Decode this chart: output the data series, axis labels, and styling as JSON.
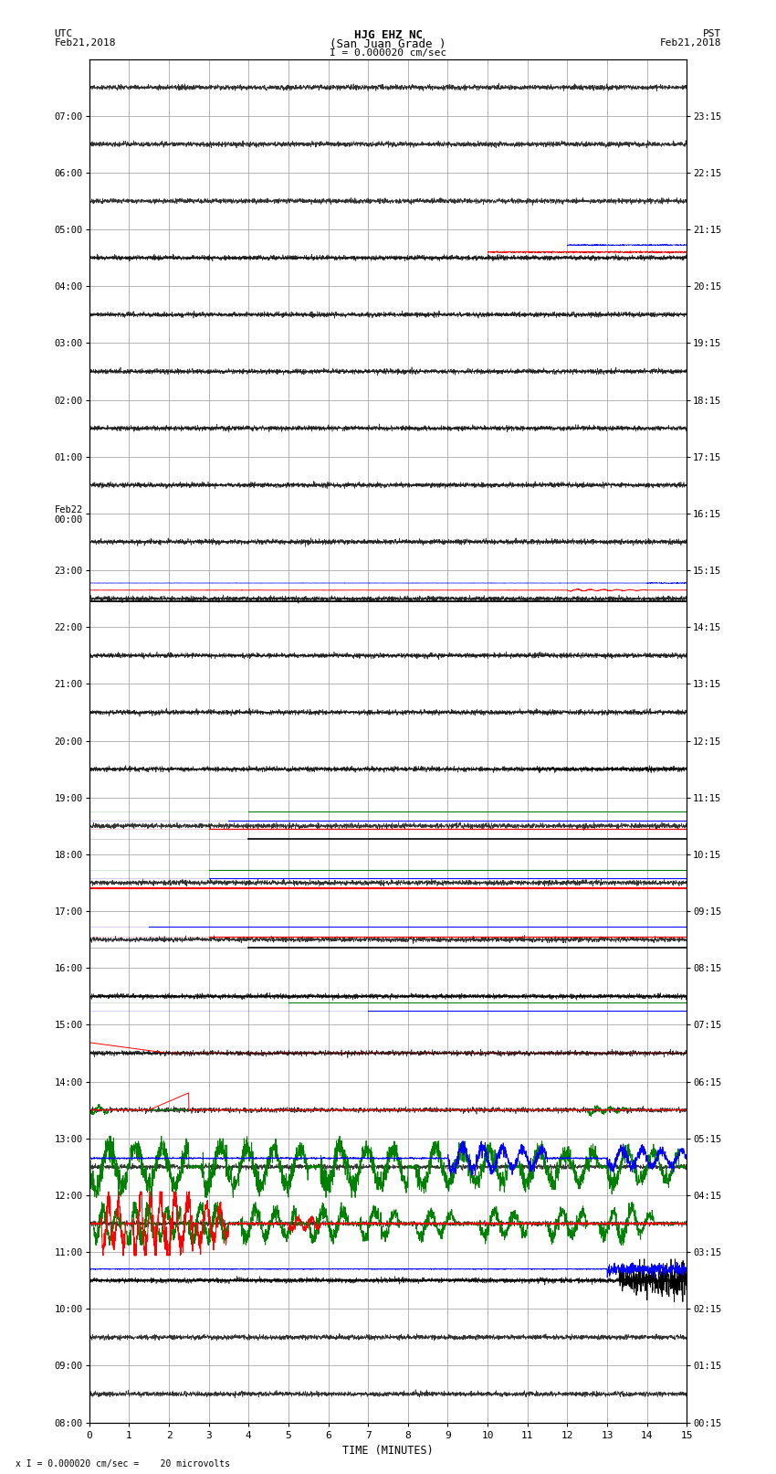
{
  "title_line1": "HJG EHZ NC",
  "title_line2": "(San Juan Grade )",
  "title_line3": "I = 0.000020 cm/sec",
  "label_left_top1": "UTC",
  "label_left_top2": "Feb21,2018",
  "label_right_top1": "PST",
  "label_right_top2": "Feb21,2018",
  "xlabel": "TIME (MINUTES)",
  "bottom_note": "x I = 0.000020 cm/sec =    20 microvolts",
  "utc_labels": [
    "08:00",
    "09:00",
    "10:00",
    "11:00",
    "12:00",
    "13:00",
    "14:00",
    "15:00",
    "16:00",
    "17:00",
    "18:00",
    "19:00",
    "20:00",
    "21:00",
    "22:00",
    "23:00",
    "Feb22\n00:00",
    "01:00",
    "02:00",
    "03:00",
    "04:00",
    "05:00",
    "06:00",
    "07:00"
  ],
  "pst_labels": [
    "00:15",
    "01:15",
    "02:15",
    "03:15",
    "04:15",
    "05:15",
    "06:15",
    "07:15",
    "08:15",
    "09:15",
    "10:15",
    "11:15",
    "12:15",
    "13:15",
    "14:15",
    "15:15",
    "16:15",
    "17:15",
    "18:15",
    "19:15",
    "20:15",
    "21:15",
    "22:15",
    "23:15"
  ],
  "num_rows": 24,
  "x_min": 0,
  "x_max": 15,
  "background_color": "#ffffff",
  "grid_color": "#999999",
  "font_family": "monospace",
  "minor_grid_color": "#cccccc"
}
